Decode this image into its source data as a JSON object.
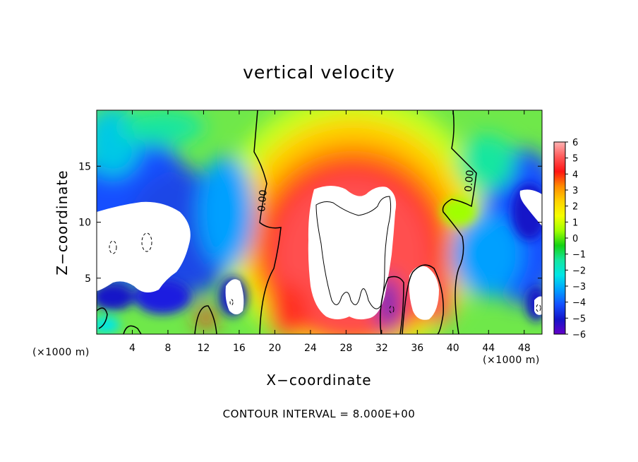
{
  "chart_data": {
    "type": "heatmap",
    "title": "vertical velocity",
    "xlabel": "X−coordinate",
    "ylabel": "Z−coordinate",
    "x_unit": "(×1000 m)",
    "x_unit_right": "(×1000 m)",
    "footer": "CONTOUR INTERVAL = 8.000E+00",
    "xlim": [
      0,
      50
    ],
    "ylim": [
      0,
      20
    ],
    "x_ticks": [
      4,
      8,
      12,
      16,
      20,
      24,
      28,
      32,
      36,
      40,
      44,
      48
    ],
    "x_tick_labels": [
      "4",
      "8",
      "12",
      "16",
      "20",
      "24",
      "28",
      "32",
      "36",
      "40",
      "44",
      "48"
    ],
    "y_ticks": [
      5,
      10,
      15
    ],
    "y_tick_labels": [
      "5",
      "10",
      "15"
    ],
    "colorbar": {
      "min": -6,
      "max": 6,
      "labels": [
        "6",
        "5",
        "4",
        "3",
        "2",
        "1",
        "0",
        "−1",
        "−2",
        "−3",
        "−4",
        "−5",
        "−6"
      ],
      "colors": [
        "#ffb3b3",
        "#ff5a5a",
        "#ff1414",
        "#ff8c00",
        "#ffd200",
        "#f5ff00",
        "#a0ff00",
        "#14d214",
        "#14e6a0",
        "#00e6e6",
        "#00a0ff",
        "#1450ff",
        "#1414c8",
        "#6400c8"
      ]
    },
    "contour_labels": [
      "0.00",
      "0.00"
    ],
    "grid": false,
    "legend": "right"
  }
}
